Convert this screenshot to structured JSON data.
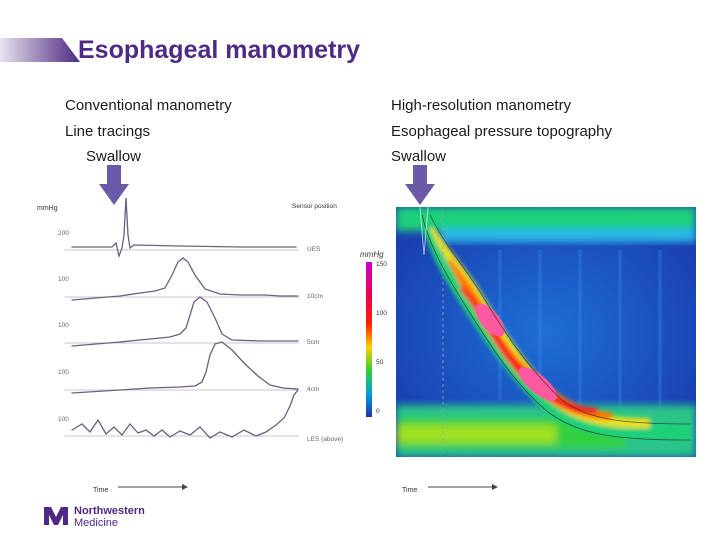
{
  "slide": {
    "title": "Esophageal manometry"
  },
  "left_panel": {
    "heading": "Conventional manometry",
    "subheading": "Line tracings",
    "event_label": "Swallow",
    "y_unit": "mmHg",
    "sensor_header": "Sensor position",
    "scale_labels": [
      "200",
      "100",
      "100",
      "100",
      "100"
    ],
    "sensor_labels": [
      "UES",
      "10cm",
      "5cm",
      "4cm",
      "LES (above)"
    ],
    "x_label": "Time"
  },
  "right_panel": {
    "heading": "High-resolution manometry",
    "subheading": "Esophageal pressure topography",
    "event_label": "Swallow",
    "colorbar_unit": "mmHg",
    "colorbar_ticks": [
      "150",
      "100",
      "50",
      "0"
    ],
    "x_label": "Time"
  },
  "brand": {
    "logo_text_1": "Northwestern",
    "logo_text_2": "Medicine",
    "color": "#4e2a84"
  }
}
